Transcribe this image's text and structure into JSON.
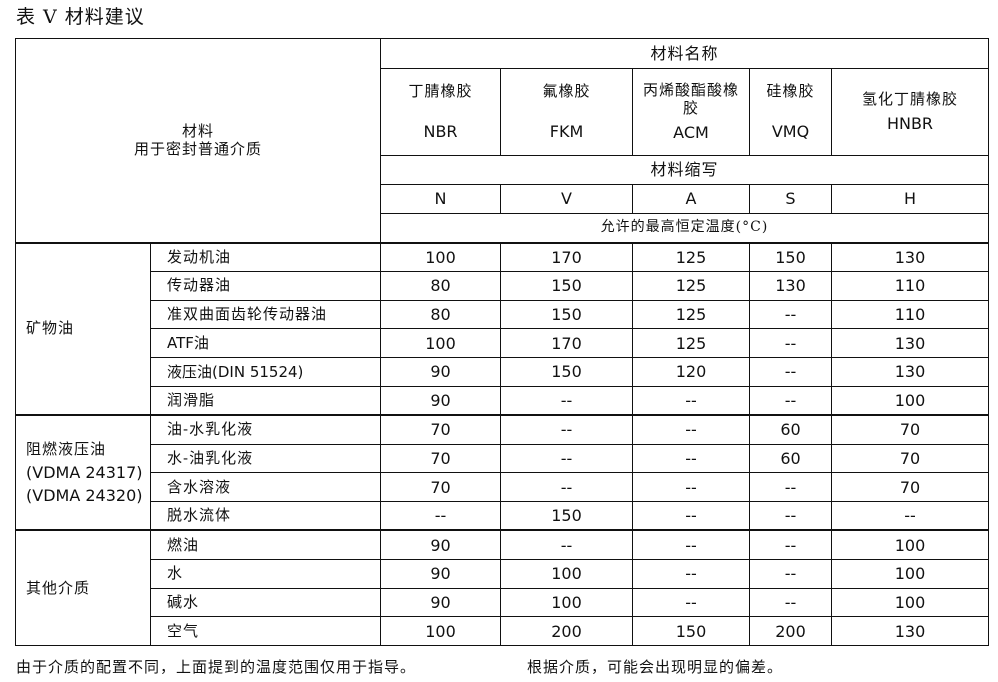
{
  "title": "表 V   材料建议",
  "header": {
    "left_line1": "材料",
    "left_line2": "用于密封普通介质",
    "material_name": "材料名称",
    "abbr_label": "材料缩写",
    "temp_label": "允许的最高恒定温度(°C)",
    "materials": [
      {
        "name": "丁腈橡胶",
        "code": "NBR",
        "abbr": "N"
      },
      {
        "name": "氟橡胶",
        "code": "FKM",
        "abbr": "V"
      },
      {
        "name": "丙烯酸酯酸橡胶",
        "code": "ACM",
        "abbr": "A"
      },
      {
        "name": "硅橡胶",
        "code": "VMQ",
        "abbr": "S"
      },
      {
        "name": "氢化丁腈橡胶",
        "code": "HNBR",
        "abbr": "H"
      }
    ]
  },
  "groups": [
    {
      "category": [
        "矿物油"
      ],
      "rows": [
        {
          "medium": "发动机油",
          "values": [
            "100",
            "170",
            "125",
            "150",
            "130"
          ]
        },
        {
          "medium": "传动器油",
          "values": [
            "80",
            "150",
            "125",
            "130",
            "110"
          ]
        },
        {
          "medium": "准双曲面齿轮传动器油",
          "values": [
            "80",
            "150",
            "125",
            "--",
            "110"
          ]
        },
        {
          "medium": "ATF油",
          "values": [
            "100",
            "170",
            "125",
            "--",
            "130"
          ]
        },
        {
          "medium": "液压油(DIN 51524)",
          "values": [
            "90",
            "150",
            "120",
            "--",
            "130"
          ]
        },
        {
          "medium": "润滑脂",
          "values": [
            "90",
            "--",
            "--",
            "--",
            "100"
          ]
        }
      ]
    },
    {
      "category": [
        "阻燃液压油",
        "(VDMA 24317)",
        "(VDMA 24320)"
      ],
      "rows": [
        {
          "medium": "油-水乳化液",
          "values": [
            "70",
            "--",
            "--",
            "60",
            "70"
          ]
        },
        {
          "medium": "水-油乳化液",
          "values": [
            "70",
            "--",
            "--",
            "60",
            "70"
          ]
        },
        {
          "medium": "含水溶液",
          "values": [
            "70",
            "--",
            "--",
            "--",
            "70"
          ]
        },
        {
          "medium": "脱水流体",
          "values": [
            "--",
            "150",
            "--",
            "--",
            "--"
          ]
        }
      ]
    },
    {
      "category": [
        "其他介质"
      ],
      "rows": [
        {
          "medium": "燃油",
          "values": [
            "90",
            "--",
            "--",
            "--",
            "100"
          ]
        },
        {
          "medium": "水",
          "values": [
            "90",
            "100",
            "--",
            "--",
            "100"
          ]
        },
        {
          "medium": "碱水",
          "values": [
            "90",
            "100",
            "--",
            "--",
            "100"
          ]
        },
        {
          "medium": "空气",
          "values": [
            "100",
            "200",
            "150",
            "200",
            "130"
          ]
        }
      ]
    }
  ],
  "footer": {
    "note1": "由于介质的配置不同，上面提到的温度范围仅用于指导。",
    "note2": "根据介质，可能会出现明显的偏差。"
  }
}
